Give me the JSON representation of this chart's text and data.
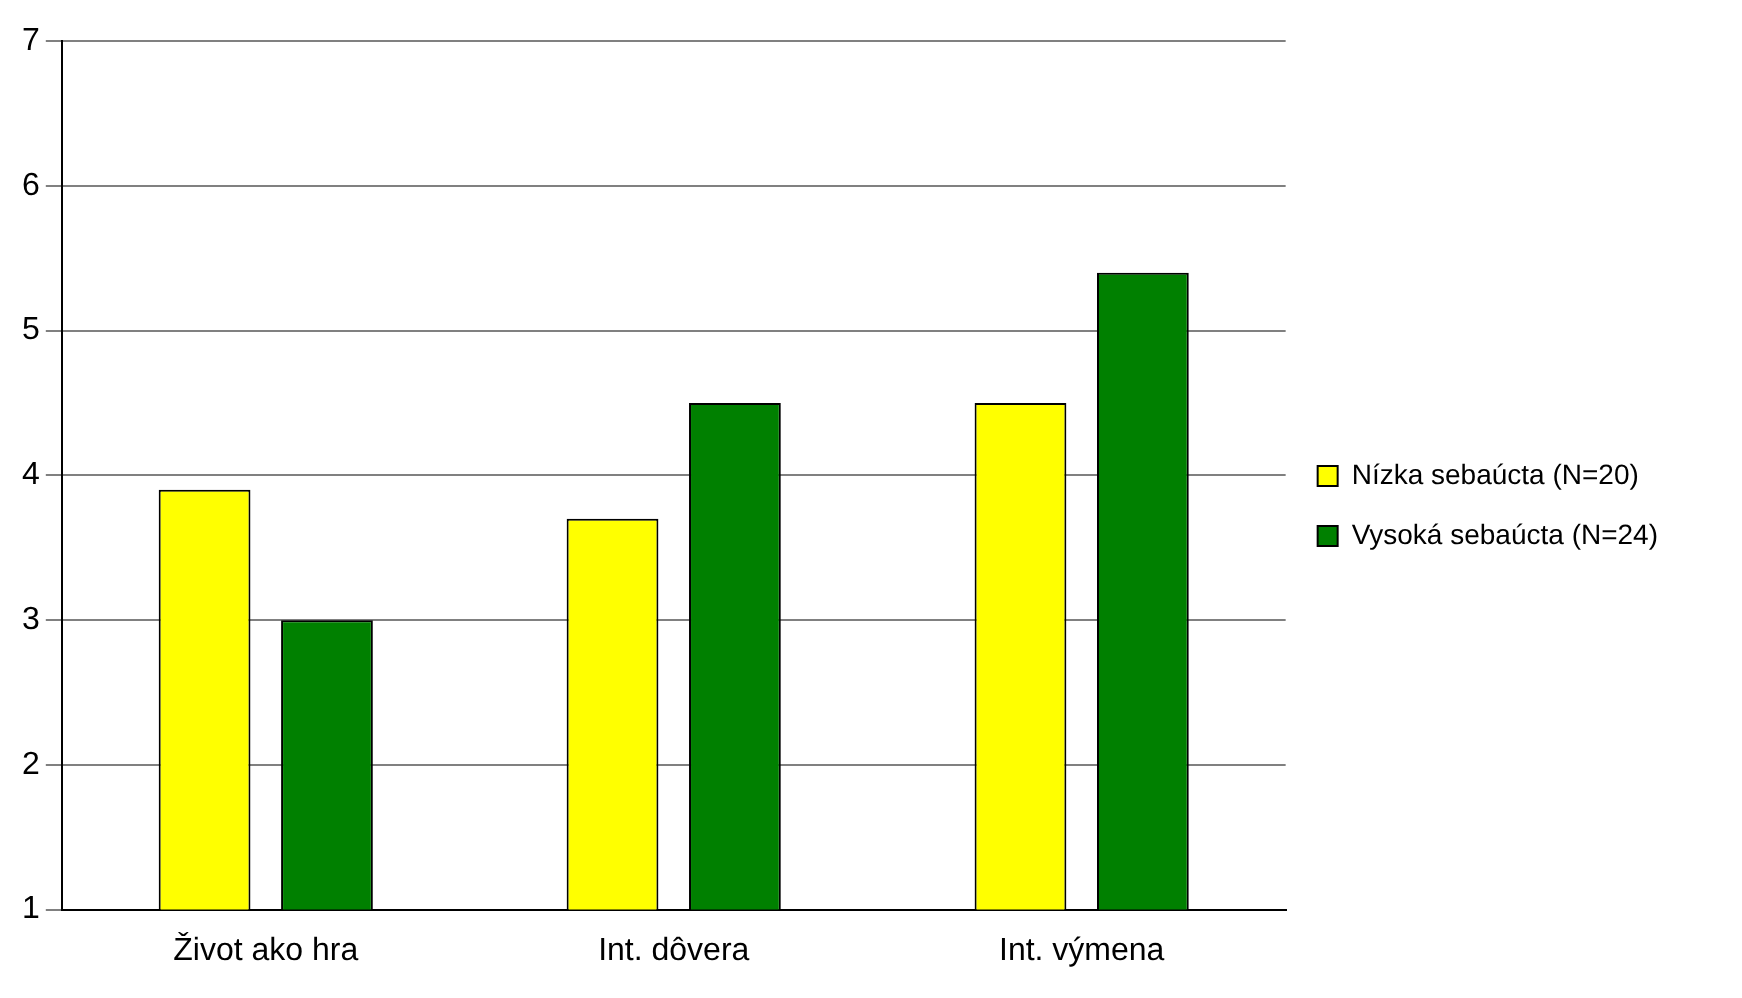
{
  "chart_data": {
    "type": "bar",
    "categories": [
      "Život ako hra",
      "Int. dôvera",
      "Int. výmena"
    ],
    "series": [
      {
        "name": "Nízka sebaúcta (N=20)",
        "color": "#ffff00",
        "values": [
          3.9,
          3.7,
          4.5
        ]
      },
      {
        "name": "Vysoká sebaúcta (N=24)",
        "color": "#008000",
        "values": [
          3.0,
          4.5,
          5.4
        ]
      }
    ],
    "ylim": [
      1,
      7
    ],
    "yticks": [
      1,
      2,
      3,
      4,
      5,
      6,
      7
    ],
    "grid": "y",
    "legend": "right"
  }
}
